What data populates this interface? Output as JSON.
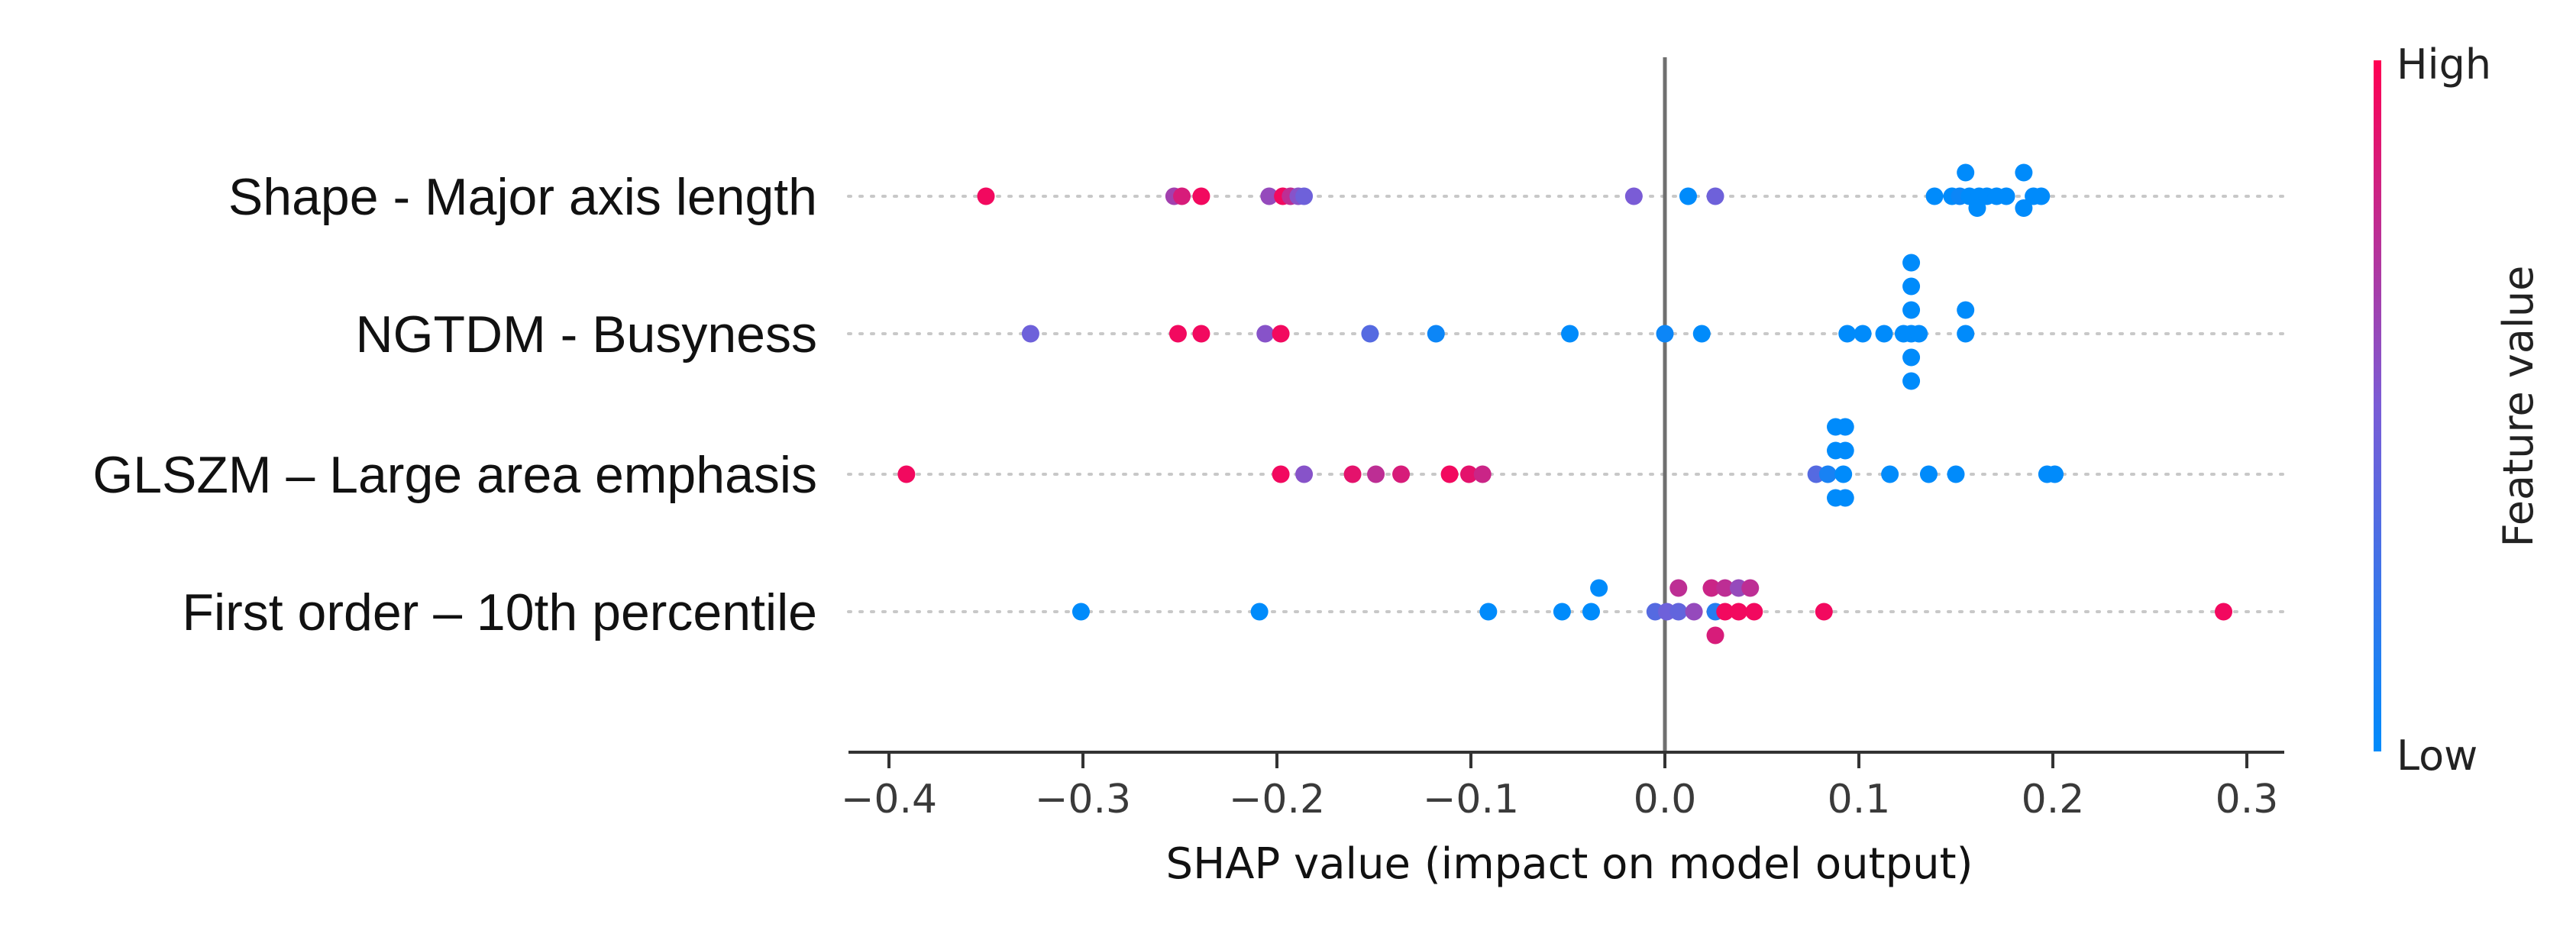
{
  "chart_data": {
    "type": "scatter",
    "subtype": "shap-beeswarm",
    "title": "",
    "xlabel": "SHAP value (impact on model output)",
    "ylabel": "",
    "xlim": [
      -0.42,
      0.32
    ],
    "xticks": [
      -0.4,
      -0.3,
      -0.2,
      -0.1,
      0.0,
      0.1,
      0.2,
      0.3
    ],
    "xtick_labels": [
      "−0.4",
      "−0.3",
      "−0.2",
      "−0.1",
      "0.0",
      "0.1",
      "0.2",
      "0.3"
    ],
    "grid": false,
    "colorbar": {
      "title": "Feature value",
      "high_label": "High",
      "low_label": "Low",
      "high_color": "#ff0052",
      "low_color": "#008bfb"
    },
    "features": [
      {
        "name": "Shape - Major axis length",
        "points": [
          {
            "x": -0.35,
            "v": 0.95,
            "y": 0
          },
          {
            "x": -0.253,
            "v": 0.65,
            "y": 0
          },
          {
            "x": -0.249,
            "v": 0.85,
            "y": 0
          },
          {
            "x": -0.239,
            "v": 0.95,
            "y": 0
          },
          {
            "x": -0.204,
            "v": 0.6,
            "y": 0
          },
          {
            "x": -0.197,
            "v": 0.95,
            "y": 0
          },
          {
            "x": -0.193,
            "v": 0.75,
            "y": 0
          },
          {
            "x": -0.189,
            "v": 0.55,
            "y": 0
          },
          {
            "x": -0.186,
            "v": 0.45,
            "y": 0
          },
          {
            "x": -0.016,
            "v": 0.5,
            "y": 0
          },
          {
            "x": 0.012,
            "v": 0.0,
            "y": 0
          },
          {
            "x": 0.026,
            "v": 0.45,
            "y": 0
          },
          {
            "x": 0.139,
            "v": 0.0,
            "y": 0
          },
          {
            "x": 0.148,
            "v": 0.0,
            "y": 0
          },
          {
            "x": 0.152,
            "v": 0.05,
            "y": 0
          },
          {
            "x": 0.157,
            "v": 0.0,
            "y": 0
          },
          {
            "x": 0.162,
            "v": 0.0,
            "y": 0
          },
          {
            "x": 0.166,
            "v": 0.0,
            "y": 0
          },
          {
            "x": 0.171,
            "v": 0.0,
            "y": 0
          },
          {
            "x": 0.176,
            "v": 0.0,
            "y": 0
          },
          {
            "x": 0.19,
            "v": 0.0,
            "y": 0
          },
          {
            "x": 0.194,
            "v": 0.0,
            "y": 0
          },
          {
            "x": 0.155,
            "v": 0.0,
            "y": 1
          },
          {
            "x": 0.185,
            "v": 0.0,
            "y": 1
          },
          {
            "x": 0.161,
            "v": 0.0,
            "y": -0.5
          },
          {
            "x": 0.185,
            "v": 0.0,
            "y": -0.5
          }
        ]
      },
      {
        "name": "NGTDM - Busyness",
        "points": [
          {
            "x": -0.327,
            "v": 0.45,
            "y": 0
          },
          {
            "x": -0.251,
            "v": 0.95,
            "y": 0
          },
          {
            "x": -0.239,
            "v": 0.95,
            "y": 0
          },
          {
            "x": -0.206,
            "v": 0.55,
            "y": 0
          },
          {
            "x": -0.198,
            "v": 0.95,
            "y": 0
          },
          {
            "x": -0.152,
            "v": 0.35,
            "y": 0
          },
          {
            "x": -0.118,
            "v": 0.05,
            "y": 0
          },
          {
            "x": -0.049,
            "v": 0.0,
            "y": 0
          },
          {
            "x": 0.0,
            "v": 0.05,
            "y": 0
          },
          {
            "x": 0.019,
            "v": 0.0,
            "y": 0
          },
          {
            "x": 0.094,
            "v": 0.0,
            "y": 0
          },
          {
            "x": 0.102,
            "v": 0.0,
            "y": 0
          },
          {
            "x": 0.113,
            "v": 0.0,
            "y": 0
          },
          {
            "x": 0.123,
            "v": 0.0,
            "y": 0
          },
          {
            "x": 0.127,
            "v": 0.0,
            "y": 0
          },
          {
            "x": 0.131,
            "v": 0.0,
            "y": 0
          },
          {
            "x": 0.127,
            "v": 0.0,
            "y": 1
          },
          {
            "x": 0.127,
            "v": 0.0,
            "y": 2
          },
          {
            "x": 0.127,
            "v": 0.0,
            "y": 3
          },
          {
            "x": 0.127,
            "v": 0.0,
            "y": -1
          },
          {
            "x": 0.127,
            "v": 0.0,
            "y": -2
          },
          {
            "x": 0.155,
            "v": 0.0,
            "y": 1
          },
          {
            "x": 0.155,
            "v": 0.0,
            "y": 0
          }
        ]
      },
      {
        "name": "GLSZM – Large area emphasis",
        "points": [
          {
            "x": -0.391,
            "v": 0.95,
            "y": 0
          },
          {
            "x": -0.198,
            "v": 0.95,
            "y": 0
          },
          {
            "x": -0.186,
            "v": 0.55,
            "y": 0
          },
          {
            "x": -0.161,
            "v": 0.9,
            "y": 0
          },
          {
            "x": -0.149,
            "v": 0.75,
            "y": 0
          },
          {
            "x": -0.136,
            "v": 0.85,
            "y": 0
          },
          {
            "x": -0.111,
            "v": 0.95,
            "y": 0
          },
          {
            "x": -0.101,
            "v": 0.9,
            "y": 0
          },
          {
            "x": -0.094,
            "v": 0.8,
            "y": 0
          },
          {
            "x": 0.078,
            "v": 0.35,
            "y": 0
          },
          {
            "x": 0.084,
            "v": 0.1,
            "y": 0
          },
          {
            "x": 0.092,
            "v": 0.0,
            "y": 0
          },
          {
            "x": 0.088,
            "v": 0.0,
            "y": 1
          },
          {
            "x": 0.093,
            "v": 0.0,
            "y": 1
          },
          {
            "x": 0.088,
            "v": 0.0,
            "y": -1
          },
          {
            "x": 0.093,
            "v": 0.0,
            "y": -1
          },
          {
            "x": 0.088,
            "v": 0.0,
            "y": 2
          },
          {
            "x": 0.093,
            "v": 0.0,
            "y": 2
          },
          {
            "x": 0.116,
            "v": 0.0,
            "y": 0
          },
          {
            "x": 0.136,
            "v": 0.0,
            "y": 0
          },
          {
            "x": 0.15,
            "v": 0.0,
            "y": 0
          },
          {
            "x": 0.197,
            "v": 0.0,
            "y": 0
          },
          {
            "x": 0.201,
            "v": 0.0,
            "y": 0
          }
        ]
      },
      {
        "name": "First order – 10th percentile",
        "points": [
          {
            "x": -0.301,
            "v": 0.0,
            "y": 0
          },
          {
            "x": -0.209,
            "v": 0.0,
            "y": 0
          },
          {
            "x": -0.091,
            "v": 0.0,
            "y": 0
          },
          {
            "x": -0.053,
            "v": 0.0,
            "y": 0
          },
          {
            "x": -0.038,
            "v": 0.0,
            "y": 0
          },
          {
            "x": -0.034,
            "v": 0.0,
            "y": 1
          },
          {
            "x": -0.005,
            "v": 0.35,
            "y": 0
          },
          {
            "x": 0.001,
            "v": 0.45,
            "y": 0
          },
          {
            "x": 0.007,
            "v": 0.4,
            "y": 0
          },
          {
            "x": 0.015,
            "v": 0.6,
            "y": 0
          },
          {
            "x": 0.026,
            "v": 0.15,
            "y": 0
          },
          {
            "x": 0.007,
            "v": 0.75,
            "y": 1
          },
          {
            "x": 0.024,
            "v": 0.8,
            "y": 1
          },
          {
            "x": 0.031,
            "v": 0.75,
            "y": 1
          },
          {
            "x": 0.038,
            "v": 0.6,
            "y": 1
          },
          {
            "x": 0.044,
            "v": 0.75,
            "y": 1
          },
          {
            "x": 0.031,
            "v": 0.95,
            "y": 0
          },
          {
            "x": 0.038,
            "v": 0.95,
            "y": 0
          },
          {
            "x": 0.046,
            "v": 0.95,
            "y": 0
          },
          {
            "x": 0.026,
            "v": 0.85,
            "y": -1
          },
          {
            "x": 0.082,
            "v": 0.95,
            "y": 0
          },
          {
            "x": 0.288,
            "v": 0.95,
            "y": 0
          }
        ]
      }
    ]
  }
}
